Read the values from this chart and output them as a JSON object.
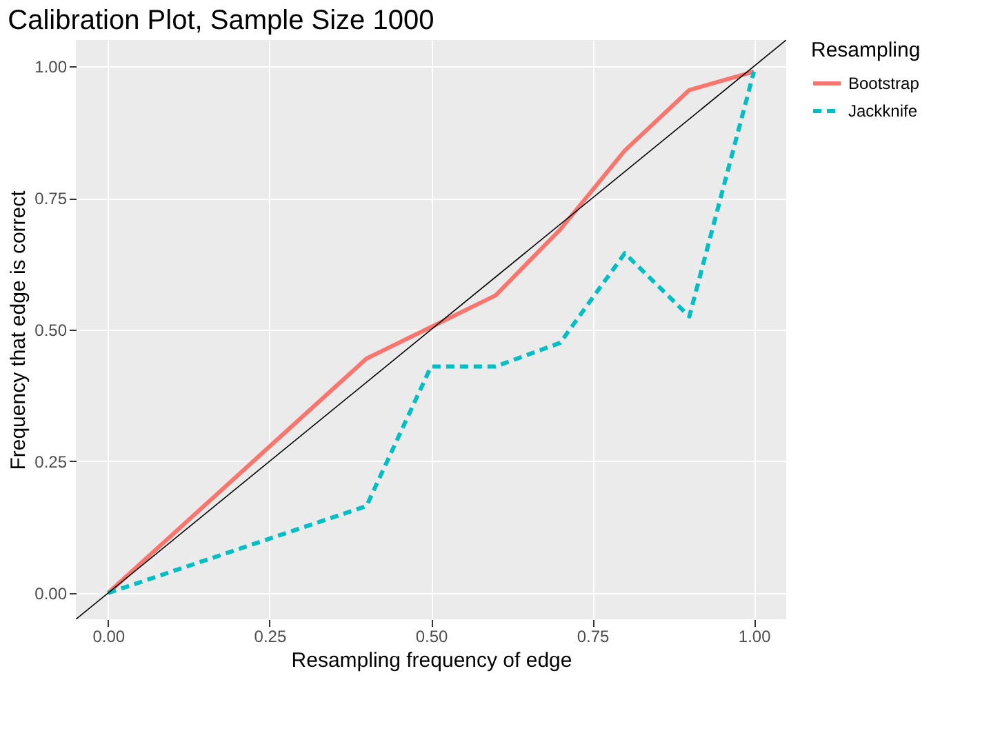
{
  "chart_data": {
    "type": "line",
    "title": "Calibration Plot, Sample Size 1000",
    "xlabel": "Resampling frequency of edge",
    "ylabel": "Frequency that edge is correct",
    "legend_title": "Resampling",
    "legend": "right",
    "grid": true,
    "xlim": [
      -0.05,
      1.05
    ],
    "ylim": [
      -0.05,
      1.05
    ],
    "xticks": [
      {
        "value": 0,
        "label": "0.00"
      },
      {
        "value": 0.25,
        "label": "0.25"
      },
      {
        "value": 0.5,
        "label": "0.50"
      },
      {
        "value": 0.75,
        "label": "0.75"
      },
      {
        "value": 1,
        "label": "1.00"
      }
    ],
    "yticks": [
      {
        "value": 0,
        "label": "0.00"
      },
      {
        "value": 0.25,
        "label": "0.25"
      },
      {
        "value": 0.5,
        "label": "0.50"
      },
      {
        "value": 0.75,
        "label": "0.75"
      },
      {
        "value": 1,
        "label": "1.00"
      }
    ],
    "x": [
      0,
      0.4,
      0.5,
      0.6,
      0.7,
      0.8,
      0.9,
      1
    ],
    "series": [
      {
        "name": "Bootstrap",
        "color": "#f8766d",
        "line_style": "solid",
        "values": [
          0,
          0.445,
          0.505,
          0.565,
          0.69,
          0.84,
          0.955,
          0.99
        ]
      },
      {
        "name": "Jackknife",
        "color": "#00bfc4",
        "line_style": "dashed",
        "values": [
          0,
          0.165,
          0.43,
          0.43,
          0.475,
          0.645,
          0.525,
          0.99
        ]
      },
      {
        "color": "#000000",
        "line_style": "solid",
        "x": [
          -0.05,
          1.05
        ],
        "values": [
          -0.05,
          1.05
        ]
      }
    ]
  }
}
